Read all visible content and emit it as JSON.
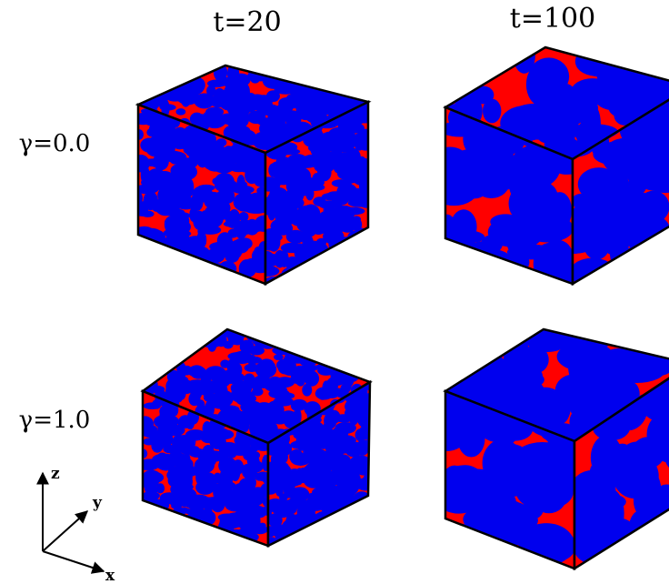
{
  "columns": [
    "t=20",
    "t=100"
  ],
  "rows": [
    "γ=0.0",
    "γ=1.0"
  ],
  "axes": {
    "z": "z",
    "y": "y",
    "x": "x"
  }
}
